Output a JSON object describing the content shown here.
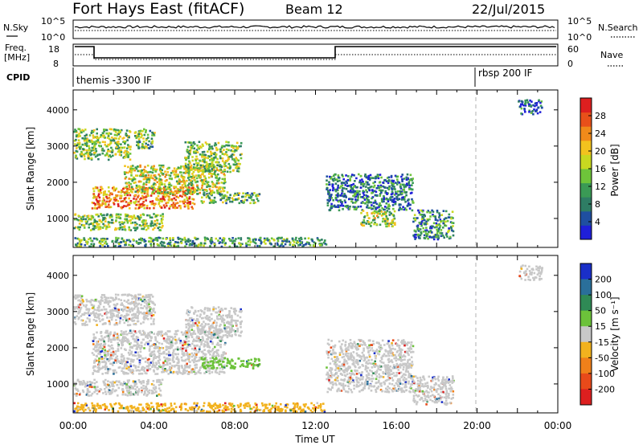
{
  "header": {
    "station": "Fort Hays East (fitACF)",
    "beam": "Beam 12",
    "date": "22/Jul/2015"
  },
  "status_panels": {
    "nsky_label": "N.Sky",
    "nsky_ticks": [
      "10^5",
      "10^0"
    ],
    "nsearch_label": "N.Search",
    "nsearch_ticks": [
      "10^5",
      "10^0"
    ],
    "freq_label": "Freq.",
    "freq_unit": "[MHz]",
    "freq_ticks": [
      "18",
      "8"
    ],
    "nave_label": "Nave",
    "nave_ticks": [
      "60",
      "0"
    ],
    "cpid_label": "CPID",
    "cpid_segments": [
      {
        "label": "themis -3300 IF",
        "start_hour": 0
      },
      {
        "label": "rbsp 200 IF",
        "start_hour": 20
      }
    ]
  },
  "chart_data": [
    {
      "type": "heatmap",
      "name": "power",
      "ylabel": "Slant Range [km]",
      "yticks": [
        1000,
        2000,
        3000,
        4000
      ],
      "ylim": [
        200,
        4550
      ],
      "xlim": [
        0,
        24
      ],
      "colorbar": {
        "label": "Power [dB]",
        "ticks": [
          "4",
          "8",
          "12",
          "16",
          "20",
          "24",
          "28"
        ],
        "colors": [
          "#1f1fd8",
          "#1f4fa0",
          "#2e7d64",
          "#3a9a55",
          "#6ec43a",
          "#c8d820",
          "#f2c21e",
          "#f08a1a",
          "#e8501a",
          "#dd1f1f"
        ]
      },
      "regions": [
        {
          "x0": 0.0,
          "x1": 2.8,
          "y0": 2650,
          "y1": 3500,
          "level": 0.45
        },
        {
          "x0": 3.0,
          "x1": 4.0,
          "y0": 2950,
          "y1": 3500,
          "level": 0.4
        },
        {
          "x0": 0.9,
          "x1": 6.0,
          "y0": 1300,
          "y1": 1900,
          "level": 0.75
        },
        {
          "x0": 2.5,
          "x1": 7.5,
          "y0": 1700,
          "y1": 2500,
          "level": 0.55
        },
        {
          "x0": 5.5,
          "x1": 8.3,
          "y0": 2300,
          "y1": 3150,
          "level": 0.45
        },
        {
          "x0": 0.0,
          "x1": 4.4,
          "y0": 700,
          "y1": 1150,
          "level": 0.45
        },
        {
          "x0": 6.3,
          "x1": 9.2,
          "y0": 1450,
          "y1": 1750,
          "level": 0.4
        },
        {
          "x0": 12.5,
          "x1": 16.8,
          "y0": 1250,
          "y1": 2250,
          "level": 0.25
        },
        {
          "x0": 14.2,
          "x1": 15.9,
          "y0": 800,
          "y1": 1250,
          "level": 0.5
        },
        {
          "x0": 16.8,
          "x1": 18.8,
          "y0": 450,
          "y1": 1250,
          "level": 0.3
        },
        {
          "x0": 0.0,
          "x1": 12.5,
          "y0": 250,
          "y1": 500,
          "level": 0.35
        },
        {
          "x0": 22.0,
          "x1": 23.2,
          "y0": 3900,
          "y1": 4300,
          "level": 0.2
        }
      ]
    },
    {
      "type": "heatmap",
      "name": "velocity",
      "ylabel": "Slant Range [km]",
      "yticks": [
        1000,
        2000,
        3000,
        4000
      ],
      "ylim": [
        200,
        4550
      ],
      "xlim": [
        0,
        24
      ],
      "xticks": [
        "00:00",
        "04:00",
        "08:00",
        "12:00",
        "16:00",
        "20:00",
        "00:00"
      ],
      "xlabel": "Time UT",
      "colorbar": {
        "label": "Velocity [m s⁻¹]",
        "ticks": [
          "200",
          "100",
          "50",
          "15",
          "-15",
          "-50",
          "-100",
          "-200"
        ],
        "colors": [
          "#1a2fc8",
          "#2a6f9a",
          "#2f8a55",
          "#6cc23a",
          "#c8c8c8",
          "#f2b21e",
          "#f0801a",
          "#e84a1a",
          "#dd1f1f"
        ]
      },
      "regions": [
        {
          "x0": 0.0,
          "x1": 4.0,
          "y0": 2650,
          "y1": 3500,
          "color": "#c8c8c8"
        },
        {
          "x0": 0.9,
          "x1": 7.5,
          "y0": 1300,
          "y1": 2500,
          "color": "#c8c8c8"
        },
        {
          "x0": 5.5,
          "x1": 8.3,
          "y0": 2300,
          "y1": 3150,
          "color": "#c8c8c8"
        },
        {
          "x0": 0.0,
          "x1": 4.4,
          "y0": 700,
          "y1": 1150,
          "color": "#c8c8c8"
        },
        {
          "x0": 6.3,
          "x1": 9.2,
          "y0": 1450,
          "y1": 1750,
          "color": "#6cc23a"
        },
        {
          "x0": 12.5,
          "x1": 16.8,
          "y0": 800,
          "y1": 2250,
          "color": "#c8c8c8"
        },
        {
          "x0": 16.8,
          "x1": 18.8,
          "y0": 450,
          "y1": 1250,
          "color": "#c8c8c8"
        },
        {
          "x0": 0.0,
          "x1": 12.5,
          "y0": 250,
          "y1": 500,
          "color": "#f2b21e"
        },
        {
          "x0": 22.0,
          "x1": 23.2,
          "y0": 3900,
          "y1": 4300,
          "color": "#c8c8c8"
        }
      ]
    }
  ]
}
